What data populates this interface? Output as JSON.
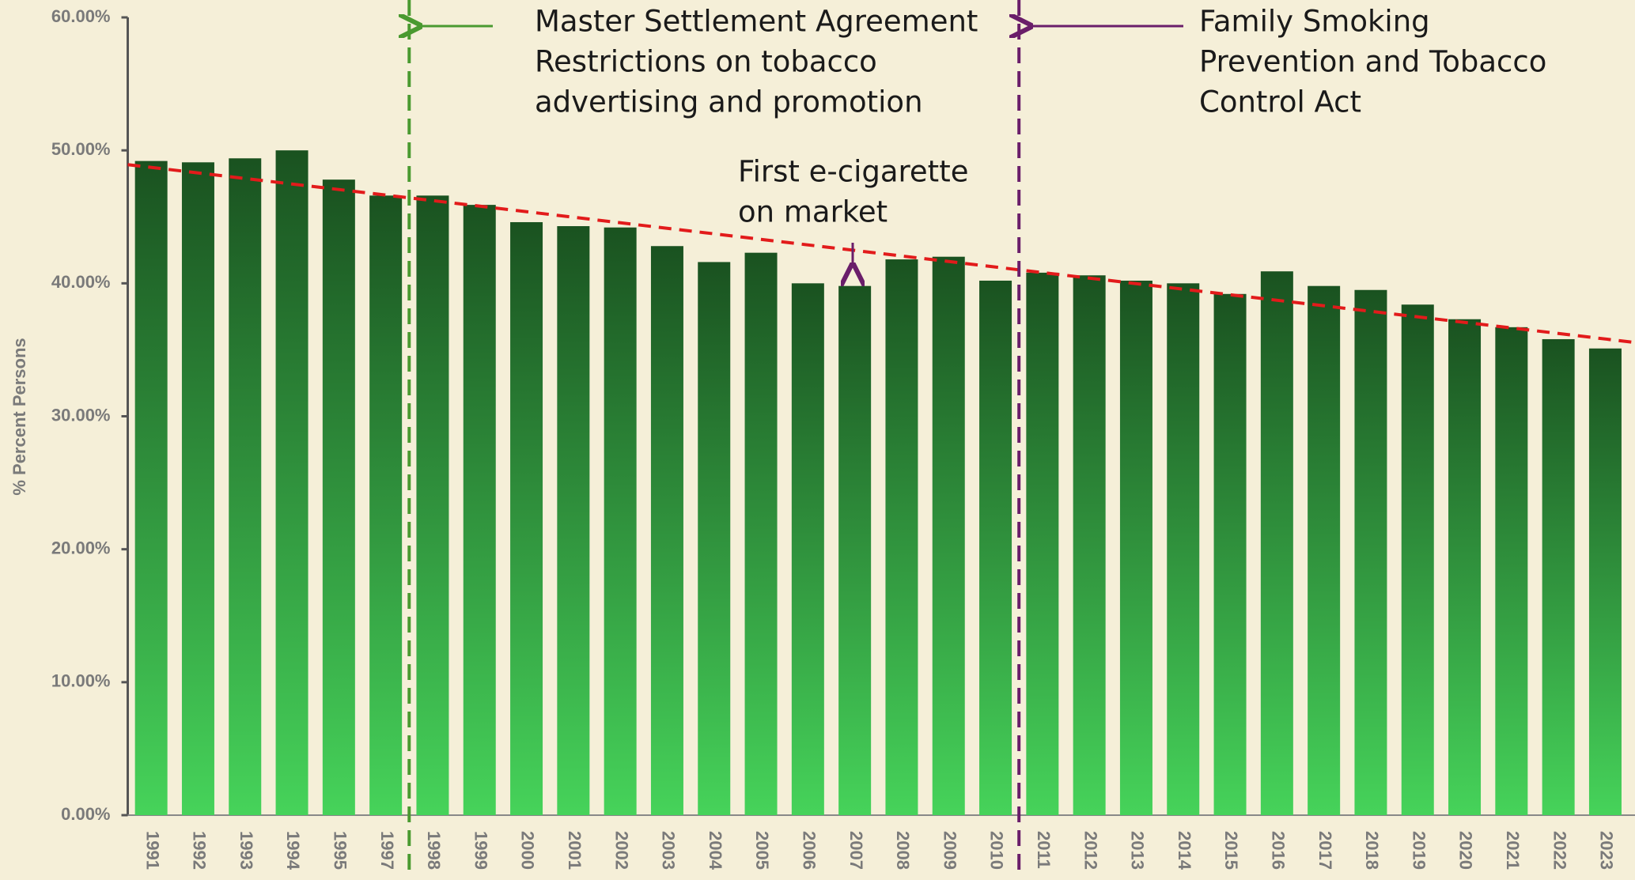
{
  "chart_data": {
    "type": "bar",
    "y_label": "% Percent Persons",
    "categories": [
      "1991",
      "1992",
      "1993",
      "1994",
      "1995",
      "1997",
      "1998",
      "1999",
      "2000",
      "2001",
      "2002",
      "2003",
      "2004",
      "2005",
      "2006",
      "2007",
      "2008",
      "2009",
      "2010",
      "2011",
      "2012",
      "2013",
      "2014",
      "2015",
      "2016",
      "2017",
      "2018",
      "2019",
      "2020",
      "2021",
      "2022",
      "2023"
    ],
    "values": [
      49.2,
      49.1,
      49.4,
      50.0,
      47.8,
      46.6,
      46.6,
      45.9,
      44.6,
      44.3,
      44.2,
      42.8,
      41.6,
      42.3,
      40.0,
      39.8,
      41.8,
      42.0,
      40.2,
      40.8,
      40.6,
      40.2,
      40.0,
      39.2,
      40.9,
      39.8,
      39.5,
      38.4,
      37.3,
      36.7,
      35.8,
      35.1
    ],
    "color_top": "#1a5220",
    "color_bottom": "#46d35a",
    "trendline": true,
    "trend_color": "#e21b1b",
    "ylim": [
      0,
      60
    ],
    "yticks": [
      {
        "value": 0,
        "label": "0.00%"
      },
      {
        "value": 10,
        "label": "10.00%"
      },
      {
        "value": 20,
        "label": "20.00%"
      },
      {
        "value": 30,
        "label": "30.00%"
      },
      {
        "value": 40,
        "label": "40.00%"
      },
      {
        "value": 50,
        "label": "50.00%"
      },
      {
        "value": 60,
        "label": "60.00%"
      }
    ],
    "annotations": [
      {
        "lines": [
          "Master Settlement Agreement",
          "Restrictions on tobacco",
          "advertising and promotion"
        ],
        "color": "#4a9a30"
      },
      {
        "lines": [
          "Family Smoking",
          "Prevention and Tobacco",
          "Control Act"
        ],
        "color": "#6a1e6a"
      },
      {
        "lines": [
          "First e-cigarette",
          "on market"
        ],
        "color": "#6a1e6a"
      }
    ]
  }
}
